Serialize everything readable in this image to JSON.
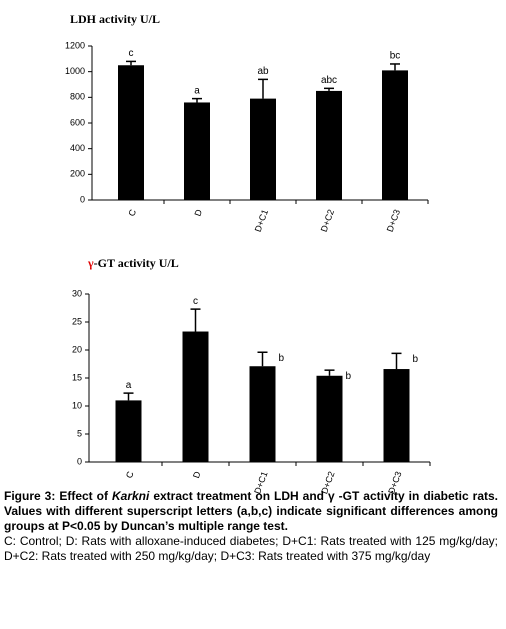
{
  "chart_data": [
    {
      "type": "bar",
      "title": "LDH activity U/L",
      "categories": [
        "C",
        "D",
        "D+C1",
        "D+C2",
        "D+C3"
      ],
      "values": [
        1050,
        760,
        790,
        850,
        1010
      ],
      "errors": [
        30,
        30,
        150,
        20,
        50
      ],
      "annotations": [
        "c",
        "a",
        "ab",
        "abc",
        "bc"
      ],
      "color": "#000000",
      "ylim": [
        0,
        1200
      ],
      "yticks": [
        0,
        200,
        400,
        600,
        800,
        1000,
        1200
      ]
    },
    {
      "type": "bar",
      "title": "γ-GT activity U/L",
      "categories": [
        "C",
        "D",
        "D+C1",
        "D+C2",
        "D+C3"
      ],
      "values": [
        11,
        23.3,
        17.1,
        15.4,
        16.6
      ],
      "errors": [
        1.3,
        4,
        2.5,
        1,
        2.8
      ],
      "annotations": [
        "a",
        "c",
        "b",
        "b",
        "b"
      ],
      "color": "#000000",
      "ylim": [
        0,
        30
      ],
      "yticks": [
        0,
        5,
        10,
        15,
        20,
        25,
        30
      ]
    }
  ],
  "caption": {
    "bold_start": "Figure 3: Effect of ",
    "bold_italic": "Karkni",
    "bold_end": " extract treatment on LDH and γ -GT activity in diabetic rats. Values with different superscript letters (a,b,c) indicate significant differences among groups at P<0.05 by Duncan’s multiple range test.",
    "note": "C: Control; D: Rats with alloxane-induced diabetes; D+C1: Rats treated with 125 mg/kg/day; D+C2: Rats treated with 250 mg/kg/day; D+C3: Rats treated with 375 mg/kg/day"
  }
}
